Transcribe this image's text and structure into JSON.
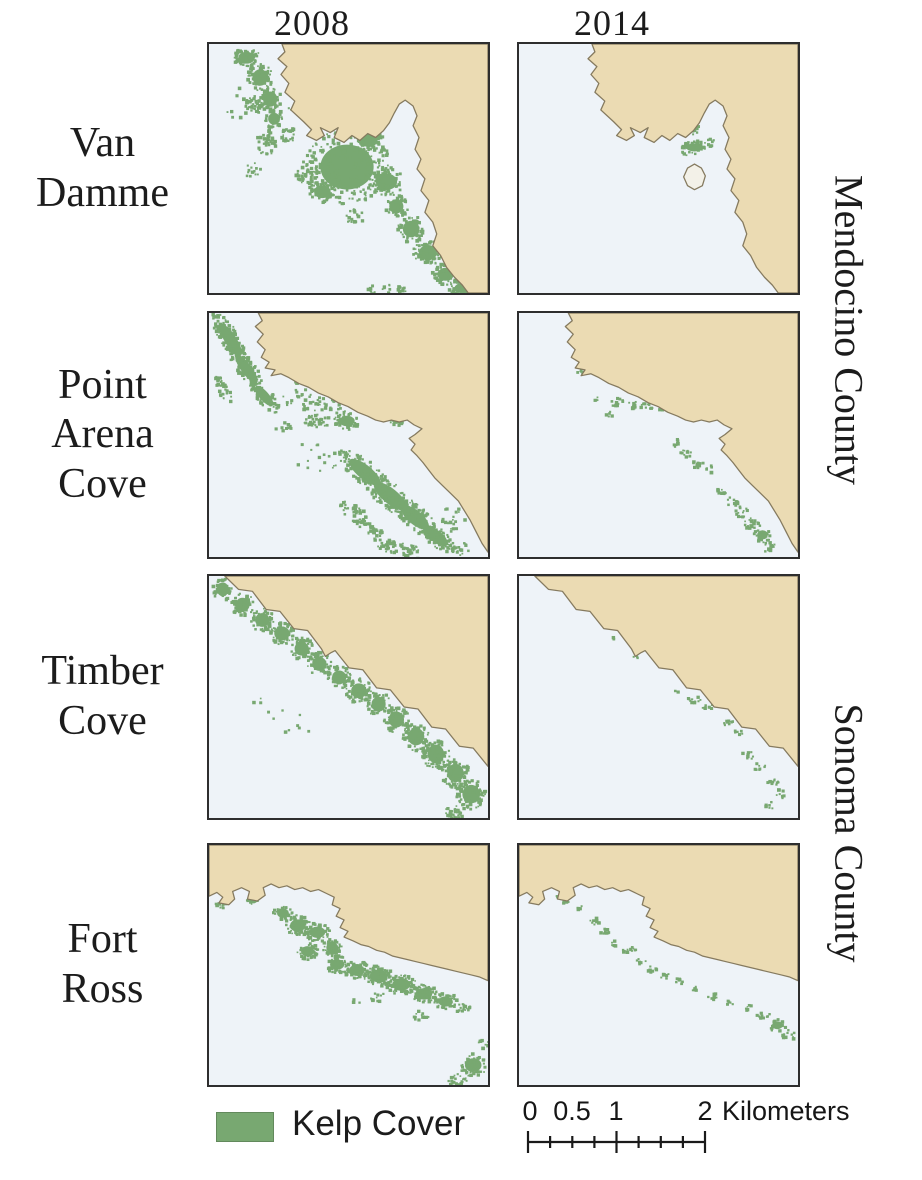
{
  "columns": [
    {
      "year": "2008"
    },
    {
      "year": "2014"
    }
  ],
  "sites": [
    {
      "name": "Van Damme",
      "label_lines": [
        "Van",
        "Damme"
      ],
      "county": "Mendocino County",
      "kelp_2008": "extensive",
      "kelp_2014": "sparse"
    },
    {
      "name": "Point Arena Cove",
      "label_lines": [
        "Point",
        "Arena",
        "Cove"
      ],
      "county": "Mendocino County",
      "kelp_2008": "extensive",
      "kelp_2014": "sparse"
    },
    {
      "name": "Timber Cove",
      "label_lines": [
        "Timber",
        "Cove"
      ],
      "county": "Sonoma County",
      "kelp_2008": "moderate",
      "kelp_2014": "sparse"
    },
    {
      "name": "Fort Ross",
      "label_lines": [
        "Fort",
        "Ross"
      ],
      "county": "Sonoma County",
      "kelp_2008": "moderate",
      "kelp_2014": "sparse"
    }
  ],
  "counties": [
    {
      "name": "Mendocino County"
    },
    {
      "name": "Sonoma County"
    }
  ],
  "legend": {
    "label": "Kelp Cover"
  },
  "scalebar": {
    "labels": [
      "0",
      "0.5",
      "1",
      "2"
    ],
    "unit": "Kilometers",
    "total_km": 2,
    "segments": 8
  },
  "colors": {
    "kelp": "#78a871",
    "land": "#ebdbb3",
    "water": "#eef3f8",
    "coastline": "#857a5f",
    "panel_border": "#2e2e2e",
    "text": "#1c1c1c"
  }
}
